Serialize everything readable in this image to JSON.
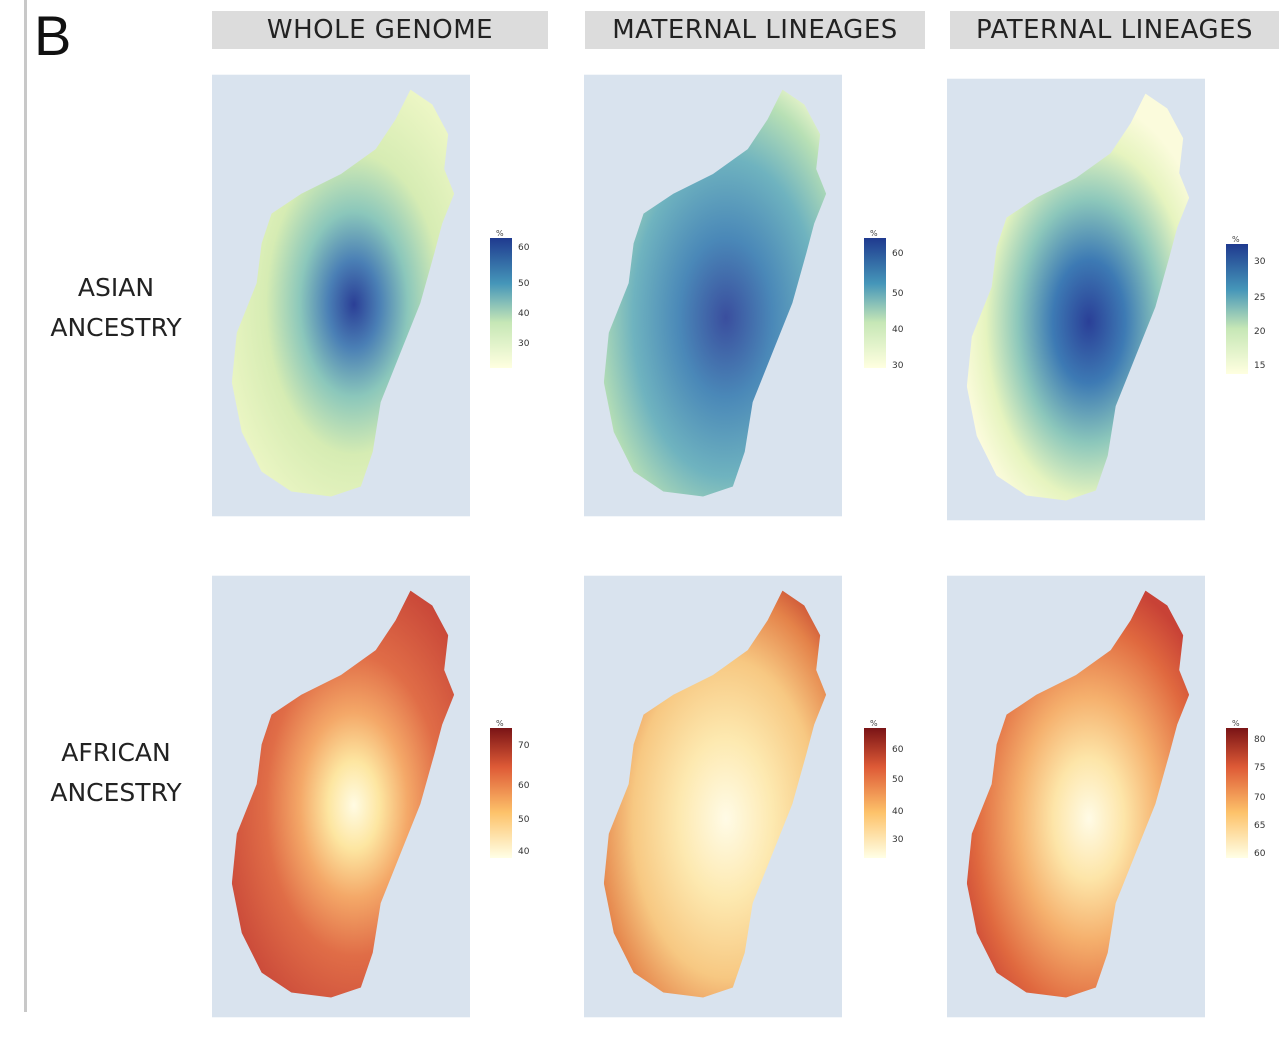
{
  "figure": {
    "panel_letter": "B",
    "columns": [
      "WHOLE GENOME",
      "MATERNAL LINEAGES",
      "PATERNAL LINEAGES"
    ],
    "rows": [
      {
        "label_line1": "ASIAN",
        "label_line2": "ANCESTRY",
        "scale": "blue"
      },
      {
        "label_line1": "AFRICAN",
        "label_line2": "ANCESTRY",
        "scale": "red"
      }
    ]
  },
  "colors": {
    "map_background": "#d9e3ee",
    "header_background": "#dcdcdc",
    "blue_scale": [
      "#ffffe0",
      "#eef7c4",
      "#c6e7b6",
      "#7fc3bb",
      "#4596b9",
      "#2b5ea8",
      "#1f3a8f"
    ],
    "red_scale": [
      "#ffffe6",
      "#fee9a3",
      "#fdc26a",
      "#f68e4b",
      "#de5a36",
      "#b8312b",
      "#7a1416"
    ]
  },
  "legends": [
    {
      "panel": "asian-whole-genome",
      "unit": "%",
      "ticks": [
        "60",
        "50",
        "40",
        "30"
      ],
      "scale": "blue"
    },
    {
      "panel": "asian-maternal",
      "unit": "%",
      "ticks": [
        "60",
        "50",
        "40",
        "30"
      ],
      "scale": "blue"
    },
    {
      "panel": "asian-paternal",
      "unit": "%",
      "ticks": [
        "30",
        "25",
        "20",
        "15"
      ],
      "scale": "blue"
    },
    {
      "panel": "african-whole-genome",
      "unit": "%",
      "ticks": [
        "70",
        "60",
        "50",
        "40"
      ],
      "scale": "red"
    },
    {
      "panel": "african-maternal",
      "unit": "%",
      "ticks": [
        "60",
        "50",
        "40",
        "30"
      ],
      "scale": "red"
    },
    {
      "panel": "african-paternal",
      "unit": "%",
      "ticks": [
        "80",
        "75",
        "70",
        "65",
        "60"
      ],
      "scale": "red"
    }
  ]
}
